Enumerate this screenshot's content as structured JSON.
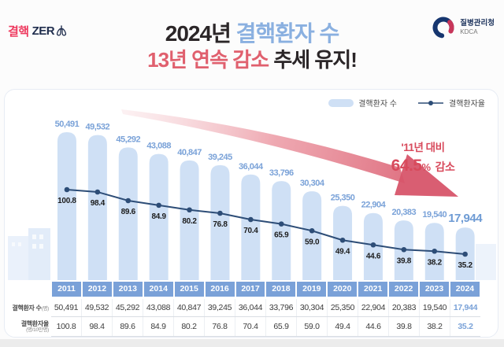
{
  "logo": {
    "text_red": "결핵",
    "text_navy": "ZER"
  },
  "agency": {
    "name": "질병관리청",
    "abbr": "KDCA"
  },
  "title": {
    "year_black": "2024년",
    "subject_blue": "결핵환자 수",
    "streak_red": "13년 연속 감소",
    "trend_black": "추세 유지!"
  },
  "legend": {
    "bar_label": "결핵환자 수",
    "line_label": "결핵환자율"
  },
  "annotation": {
    "line1": "'11년 대비",
    "value": "64.5",
    "unit": "%",
    "suffix": "감소"
  },
  "chart_data": {
    "type": "bar+line",
    "categories": [
      "2011",
      "2012",
      "2013",
      "2014",
      "2015",
      "2016",
      "2017",
      "2018",
      "2019",
      "2020",
      "2021",
      "2022",
      "2023",
      "2024"
    ],
    "series": [
      {
        "name": "결핵환자 수",
        "type": "bar",
        "values": [
          50491,
          49532,
          45292,
          43088,
          40847,
          39245,
          36044,
          33796,
          30304,
          25350,
          22904,
          20383,
          19540,
          17944
        ],
        "labels": [
          "50,491",
          "49,532",
          "45,292",
          "43,088",
          "40,847",
          "39,245",
          "36,044",
          "33,796",
          "30,304",
          "25,350",
          "22,904",
          "20,383",
          "19,540",
          "17,944"
        ]
      },
      {
        "name": "결핵환자율",
        "type": "line",
        "values": [
          100.8,
          98.4,
          89.6,
          84.9,
          80.2,
          76.8,
          70.4,
          65.9,
          59.0,
          49.4,
          44.6,
          39.8,
          38.2,
          35.2
        ],
        "labels": [
          "100.8",
          "98.4",
          "89.6",
          "84.9",
          "80.2",
          "76.8",
          "70.4",
          "65.9",
          "59.0",
          "49.4",
          "44.6",
          "39.8",
          "38.2",
          "35.2"
        ]
      }
    ],
    "ylim_bar": [
      0,
      50491
    ],
    "ylim_rate": [
      35.2,
      100.8
    ],
    "grid": false,
    "legend_position": "top-right",
    "highlight_last_category": true
  },
  "table": {
    "row1_label": "결핵환자 수",
    "row1_unit": "(명)",
    "row2_label": "결핵환자율",
    "row2_unit": "(명/10만명)"
  },
  "colors": {
    "bar": "#cfe0f5",
    "bar_label": "#7aa2d8",
    "bar_label_highlight": "#6e9bd4",
    "line": "#2d4d77",
    "rate_label": "#1c1c1c",
    "year_bg": "#7aa1d8",
    "title_blue": "#8ab0e0",
    "title_red": "#e0606e",
    "annotation_red": "#d84a5c",
    "arrow_red": "#d75468",
    "logo_red": "#ee3a5f",
    "navy": "#1f2d4d"
  }
}
